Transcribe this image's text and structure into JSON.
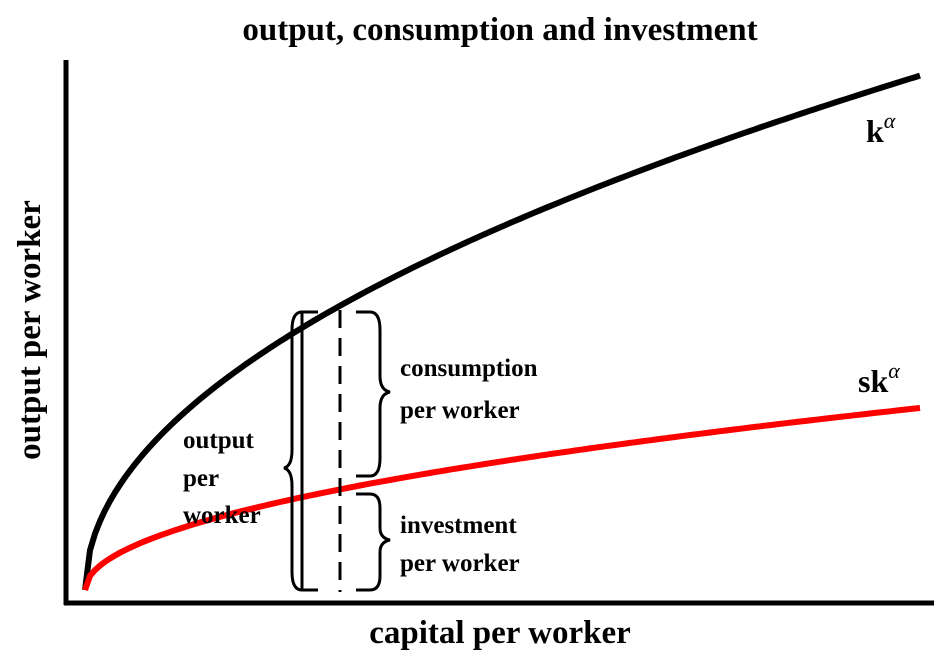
{
  "title": "output, consumption and investment",
  "axes": {
    "y_label": "output per worker",
    "x_label": "capital per worker"
  },
  "curves": [
    {
      "label": "k",
      "exponent": "α"
    },
    {
      "label": "sk",
      "exponent": "α"
    }
  ],
  "annotations": {
    "consumption": [
      "consumption",
      "per worker"
    ],
    "output": [
      "output",
      "per",
      "worker"
    ],
    "investment": [
      "investment",
      "per worker"
    ]
  }
}
